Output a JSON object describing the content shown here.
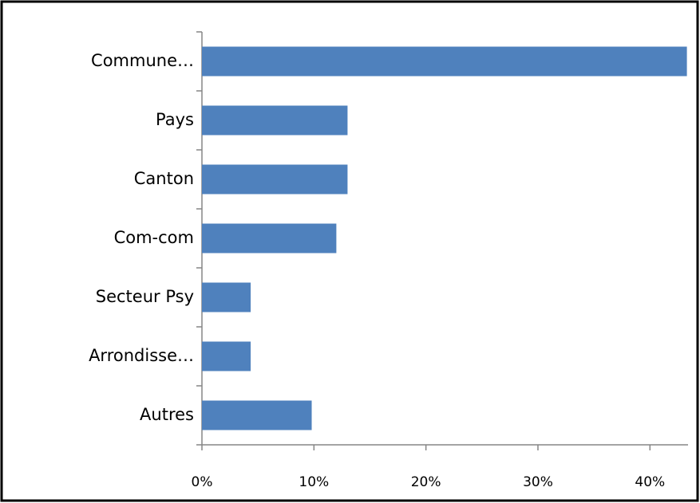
{
  "chart_data": {
    "type": "barh",
    "categories": [
      "Commune…",
      "Pays",
      "Canton",
      "Com-com",
      "Secteur Psy",
      "Arrondisse…",
      "Autres"
    ],
    "values": [
      43.3,
      13.0,
      13.0,
      12.0,
      4.35,
      4.35,
      9.8
    ],
    "color": "#4f81bd",
    "xlim": [
      0,
      43.4
    ],
    "xticks": [
      {
        "value": 0,
        "label": "0%"
      },
      {
        "value": 10,
        "label": "10%"
      },
      {
        "value": 20,
        "label": "20%"
      },
      {
        "value": 30,
        "label": "30%"
      },
      {
        "value": 40,
        "label": "40%"
      }
    ],
    "grid": false
  }
}
